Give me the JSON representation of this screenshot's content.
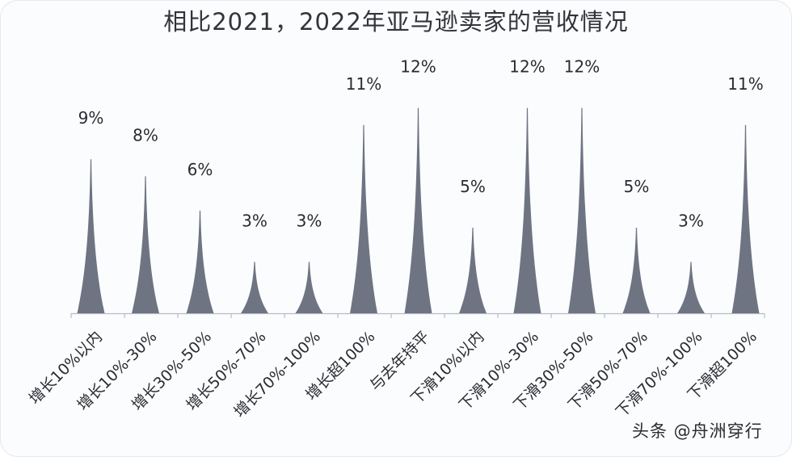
{
  "title": "相比2021，2022年亚马逊卖家的营收情况",
  "watermark": "头条 @舟洲穿行",
  "chart_data": {
    "type": "bar",
    "title": "相比2021，2022年亚马逊卖家的营收情况",
    "xlabel": "",
    "ylabel": "",
    "ylim": [
      0,
      12
    ],
    "grid": false,
    "legend": null,
    "bar_style": "pictorial spike (triangle peak)",
    "color": "#6e7482",
    "categories": [
      "增长10%以内",
      "增长10%-30%",
      "增长30%-50%",
      "增长50%-70%",
      "增长70%-100%",
      "增长超100%",
      "与去年持平",
      "下滑10%以内",
      "下滑10%-30%",
      "下滑30%-50%",
      "下滑50%-70%",
      "下滑70%-100%",
      "下滑超100%"
    ],
    "values": [
      9,
      8,
      6,
      3,
      3,
      11,
      12,
      5,
      12,
      12,
      5,
      3,
      11
    ],
    "data_labels": [
      "9%",
      "8%",
      "6%",
      "3%",
      "3%",
      "11%",
      "12%",
      "5%",
      "12%",
      "12%",
      "5%",
      "3%",
      "11%"
    ]
  }
}
